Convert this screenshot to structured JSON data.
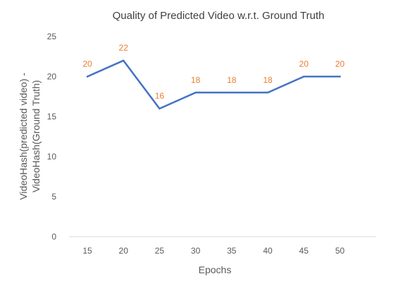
{
  "chart_data": {
    "type": "line",
    "title": "Quality of Predicted Video w.r.t. Ground Truth",
    "xlabel": "Epochs",
    "ylabel_lines": [
      "VideoHash(predicted video) -",
      "VideoHash(Ground Truth)"
    ],
    "categories": [
      "15",
      "20",
      "25",
      "30",
      "35",
      "40",
      "45",
      "50"
    ],
    "series": [
      {
        "values": [
          20,
          22,
          16,
          18,
          18,
          18,
          20,
          20
        ]
      }
    ],
    "ylim": [
      0,
      25
    ],
    "yticks": [
      "0",
      "5",
      "10",
      "15",
      "20",
      "25"
    ],
    "grid": false,
    "legend": "none",
    "line_color": "#4472C4",
    "label_color": "#ED7D31"
  }
}
